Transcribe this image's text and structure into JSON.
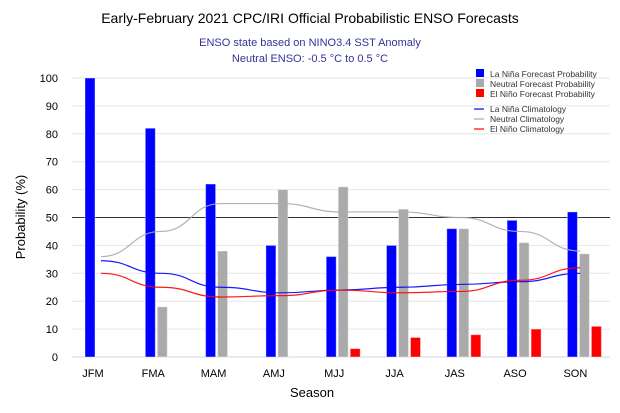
{
  "chart_data": {
    "type": "bar",
    "title": "Early-February 2021 CPC/IRI Official Probabilistic ENSO Forecasts",
    "subtitle": [
      "ENSO state based on NINO3.4 SST Anomaly",
      "Neutral ENSO: -0.5 °C to 0.5 °C"
    ],
    "xlabel": "Season",
    "ylabel": "Probability (%)",
    "ylim": [
      0,
      100
    ],
    "yticks": [
      "0",
      "10",
      "20",
      "30",
      "40",
      "50",
      "60",
      "70",
      "80",
      "90",
      "100"
    ],
    "grid": true,
    "reference_line": 50,
    "legend_placement": "top-right",
    "categories": [
      "JFM",
      "FMA",
      "MAM",
      "AMJ",
      "MJJ",
      "JJA",
      "JAS",
      "ASO",
      "SON"
    ],
    "series": [
      {
        "name": "La Niña Forecast Probability",
        "kind": "bar",
        "color": "#0000ff",
        "values": [
          100,
          82,
          62,
          40,
          36,
          40,
          46,
          49,
          52
        ]
      },
      {
        "name": "Neutral Forecast Probability",
        "kind": "bar",
        "color": "#aaaaaa",
        "values": [
          0,
          18,
          38,
          60,
          61,
          53,
          46,
          41,
          37
        ]
      },
      {
        "name": "El Niño Forecast Probability",
        "kind": "bar",
        "color": "#ff0000",
        "values": [
          0,
          0,
          0,
          0,
          3,
          7,
          8,
          10,
          11
        ]
      },
      {
        "name": "La Niña Climatology",
        "kind": "line",
        "color": "#0000ff",
        "values": [
          34.5,
          30,
          25,
          23,
          24,
          25,
          26,
          27,
          30
        ]
      },
      {
        "name": "Neutral Climatology",
        "kind": "line",
        "color": "#aaaaaa",
        "values": [
          36,
          45,
          55,
          55,
          52,
          52,
          50,
          45,
          38
        ]
      },
      {
        "name": "El Niño Climatology",
        "kind": "line",
        "color": "#ff0000",
        "values": [
          30,
          25,
          21.5,
          22,
          24,
          23,
          23.5,
          27.5,
          32
        ]
      }
    ]
  }
}
